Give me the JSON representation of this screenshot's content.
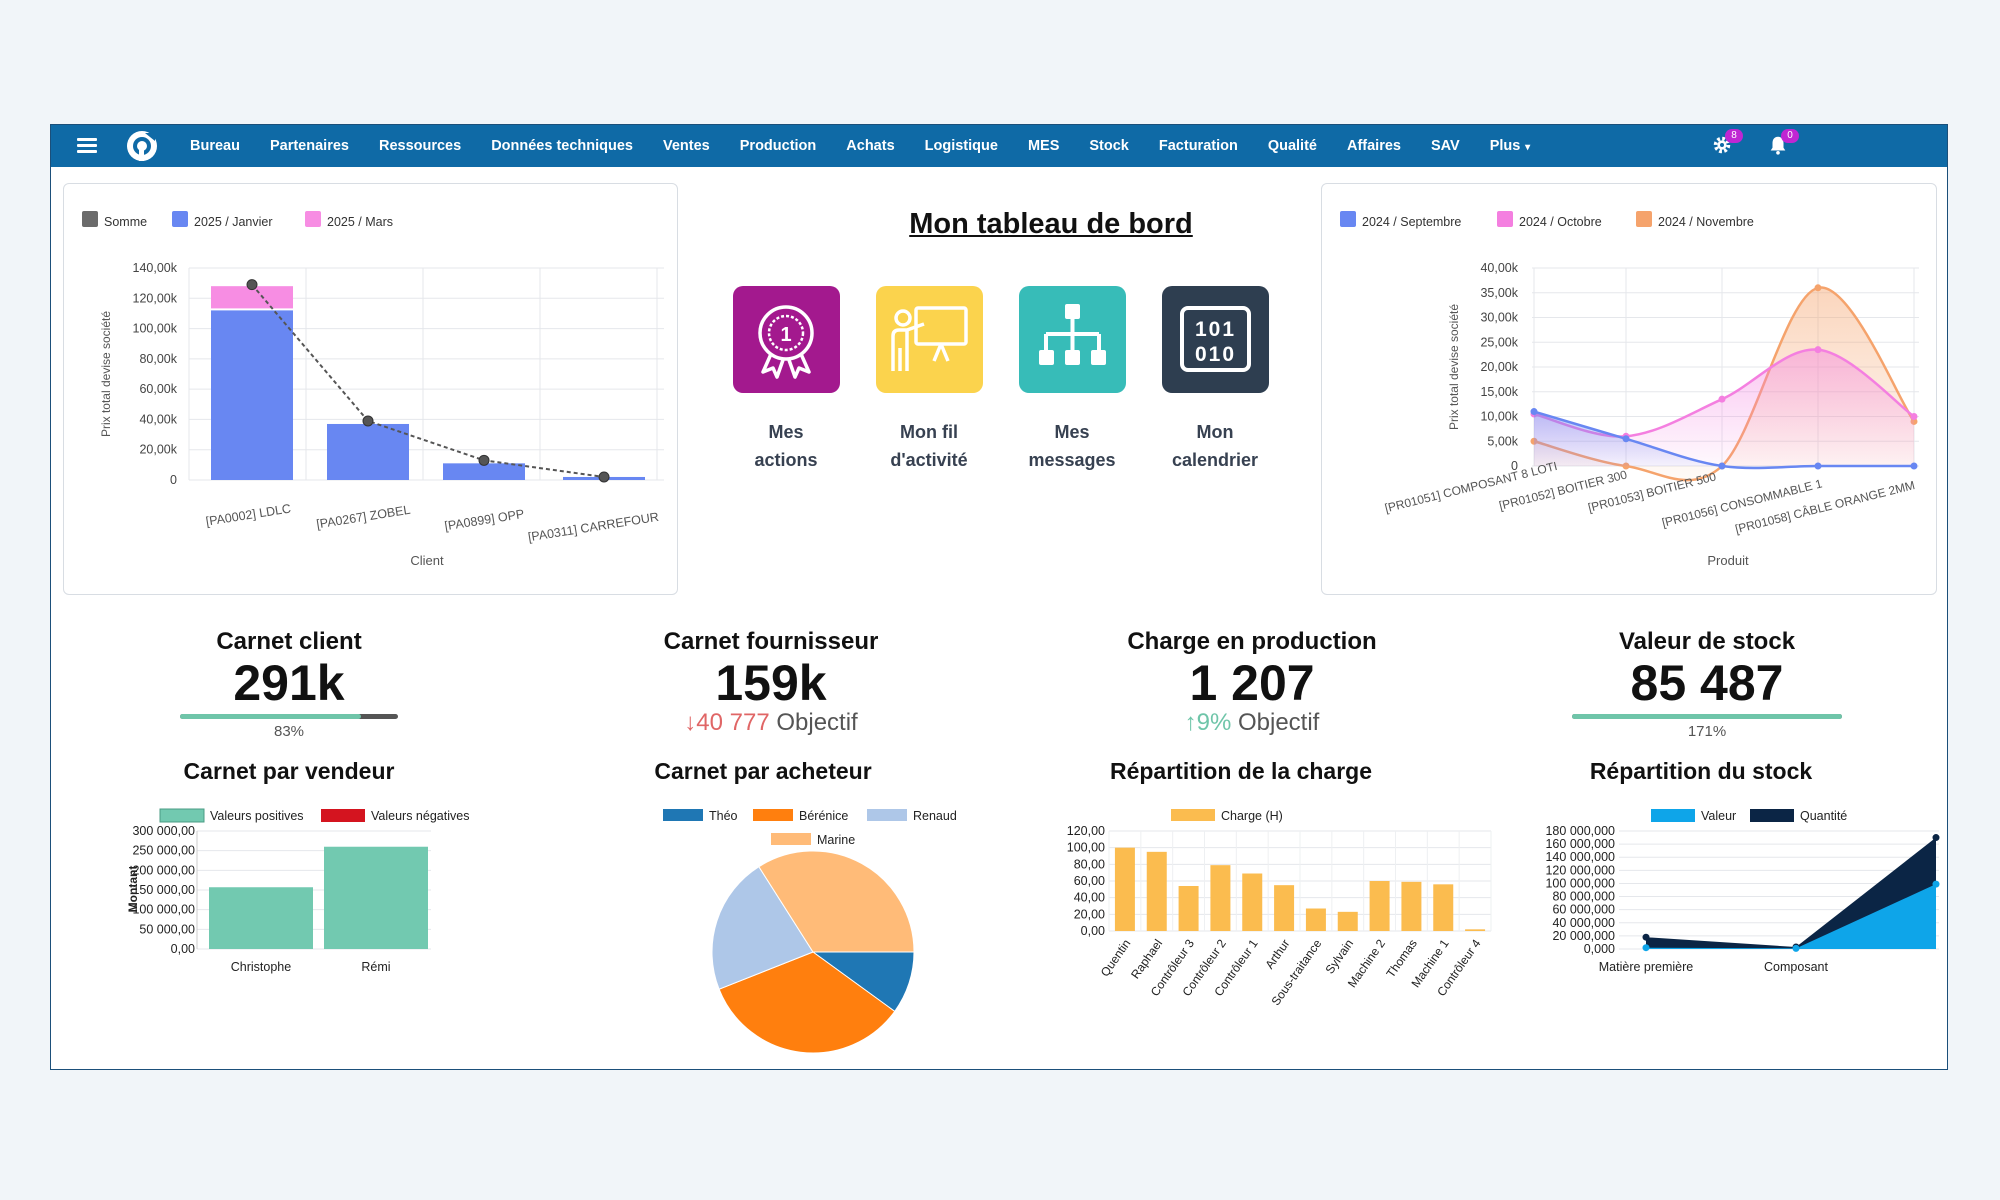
{
  "nav": {
    "items": [
      "Bureau",
      "Partenaires",
      "Ressources",
      "Données techniques",
      "Ventes",
      "Production",
      "Achats",
      "Logistique",
      "MES",
      "Stock",
      "Facturation",
      "Qualité",
      "Affaires",
      "SAV"
    ],
    "plus_label": "Plus",
    "settings_badge": "8",
    "notifications_badge": "0"
  },
  "dashboard": {
    "title": "Mon tableau de bord",
    "tiles": [
      {
        "line1": "Mes",
        "line2": "actions",
        "color": "#a3198e",
        "icon": "award-icon"
      },
      {
        "line1": "Mon fil",
        "line2": "d'activité",
        "color": "#fbd34d",
        "icon": "presentation-icon"
      },
      {
        "line1": "Mes",
        "line2": "messages",
        "color": "#37bcb8",
        "icon": "org-chart-icon"
      },
      {
        "line1": "Mon",
        "line2": "calendrier",
        "color": "#2e3e50",
        "icon": "binary-calendar-icon"
      }
    ]
  },
  "kpis": [
    {
      "title": "Carnet client",
      "value": "291k",
      "progress_label": "83%",
      "progress": 0.83
    },
    {
      "title": "Carnet fournisseur",
      "value": "159k",
      "delta_value": "40 777",
      "delta_label": "Objectif",
      "delta_direction": "down",
      "delta_color": "#e06666"
    },
    {
      "title": "Charge en production",
      "value": "1 207",
      "delta_value": "9%",
      "delta_label": "Objectif",
      "delta_direction": "up",
      "delta_color": "#6fc5a9"
    },
    {
      "title": "Valeur de stock",
      "value": "85 487",
      "progress_label": "171%",
      "progress": 1.0
    }
  ],
  "chart_data": [
    {
      "id": "clients",
      "type": "bar",
      "legend": [
        "Somme",
        "2025 / Janvier",
        "2025 / Mars"
      ],
      "legend_colors": [
        "#6b6b6b",
        "#6887f2",
        "#f78de3"
      ],
      "categories": [
        "[PA0002] LDLC",
        "[PA0267] ZOBEL",
        "[PA0899] OPP",
        "[PA0311] CARREFOUR"
      ],
      "series": [
        {
          "name": "2025 / Janvier",
          "values": [
            112000,
            37000,
            11000,
            2000
          ]
        },
        {
          "name": "2025 / Mars",
          "values": [
            16000,
            0,
            0,
            0
          ]
        },
        {
          "name": "Somme",
          "values": [
            129000,
            39000,
            13000,
            2000
          ]
        }
      ],
      "yticks": [
        "140,00k",
        "120,00k",
        "100,00k",
        "80,00k",
        "60,00k",
        "40,00k",
        "20,00k",
        "0"
      ],
      "ylim": [
        0,
        140000
      ],
      "xlabel": "Client",
      "ylabel": "Prix total devise société"
    },
    {
      "id": "produits",
      "type": "line",
      "legend": [
        "2024 / Septembre",
        "2024 / Octobre",
        "2024 / Novembre"
      ],
      "legend_colors": [
        "#6887f2",
        "#f47fe0",
        "#f5a36c"
      ],
      "categories": [
        "[PR01051] COMPOSANT 8 LOTI",
        "[PR01052] BOITIER 300",
        "[PR01053] BOITIER 500",
        "[PR01056] CONSOMMABLE 1",
        "[PR01058] CÂBLE ORANGE 2MM"
      ],
      "series": [
        {
          "name": "2024 / Septembre",
          "values": [
            11000,
            5500,
            0,
            0,
            0
          ]
        },
        {
          "name": "2024 / Octobre",
          "values": [
            10500,
            6000,
            13500,
            23500,
            10000
          ]
        },
        {
          "name": "2024 / Novembre",
          "values": [
            5000,
            0,
            0,
            36000,
            9000
          ]
        }
      ],
      "yticks": [
        "40,00k",
        "35,00k",
        "30,00k",
        "25,00k",
        "20,00k",
        "15,00k",
        "10,00k",
        "5,00k",
        "0"
      ],
      "ylim": [
        0,
        40000
      ],
      "xlabel": "Produit",
      "ylabel": "Prix total devise société"
    },
    {
      "id": "vendeur",
      "title": "Carnet par vendeur",
      "type": "bar",
      "legend": [
        "Valeurs positives",
        "Valeurs négatives"
      ],
      "legend_colors": [
        "#72c9b0",
        "#d4141f"
      ],
      "categories": [
        "Christophe",
        "Rémi"
      ],
      "values": [
        157000,
        260000
      ],
      "yticks": [
        "300 000,00",
        "250 000,00",
        "200 000,00",
        "150 000,00",
        "100 000,00",
        "50 000,00",
        "0,00"
      ],
      "ylim": [
        0,
        300000
      ],
      "ylabel": "Montant"
    },
    {
      "id": "acheteur",
      "title": "Carnet par acheteur",
      "type": "pie",
      "legend": [
        "Théo",
        "Bérénice",
        "Renaud",
        "Marine"
      ],
      "legend_colors": [
        "#1f77b4",
        "#ff7f0e",
        "#aec7e8",
        "#ffbb78"
      ],
      "values": [
        10,
        34,
        22,
        34
      ]
    },
    {
      "id": "charge",
      "title": "Répartition de la charge",
      "type": "bar",
      "legend": [
        "Charge (H)"
      ],
      "legend_colors": [
        "#fbbc4f"
      ],
      "categories": [
        "Quentin",
        "Raphael",
        "Contrôleur 3",
        "Contrôleur 2",
        "Contrôleur 1",
        "Arthur",
        "Sous-traitance",
        "Sylvain",
        "Machine 2",
        "Thomas",
        "Machine 1",
        "Contrôleur 4"
      ],
      "values": [
        100,
        95,
        54,
        79,
        69,
        55,
        27,
        23,
        60,
        59,
        56,
        2
      ],
      "yticks": [
        "120,00",
        "100,00",
        "80,00",
        "60,00",
        "40,00",
        "20,00",
        "0,00"
      ],
      "ylim": [
        0,
        120
      ]
    },
    {
      "id": "stock",
      "title": "Répartition du stock",
      "type": "area",
      "legend": [
        "Valeur",
        "Quantité"
      ],
      "legend_colors": [
        "#0ea5e9",
        "#0b2545"
      ],
      "categories": [
        "Matière première",
        "Composant",
        ""
      ],
      "series": [
        {
          "name": "Valeur",
          "values": [
            2000000,
            1000000,
            99000000
          ]
        },
        {
          "name": "Quantité",
          "values": [
            18000000,
            3000000,
            170000000
          ]
        }
      ],
      "yticks": [
        "180 000,000",
        "160 000,000",
        "140 000,000",
        "120 000,000",
        "100 000,000",
        "80 000,000",
        "60 000,000",
        "40 000,000",
        "20 000,000",
        "0,000"
      ],
      "ylim": [
        0,
        180000000
      ]
    }
  ]
}
